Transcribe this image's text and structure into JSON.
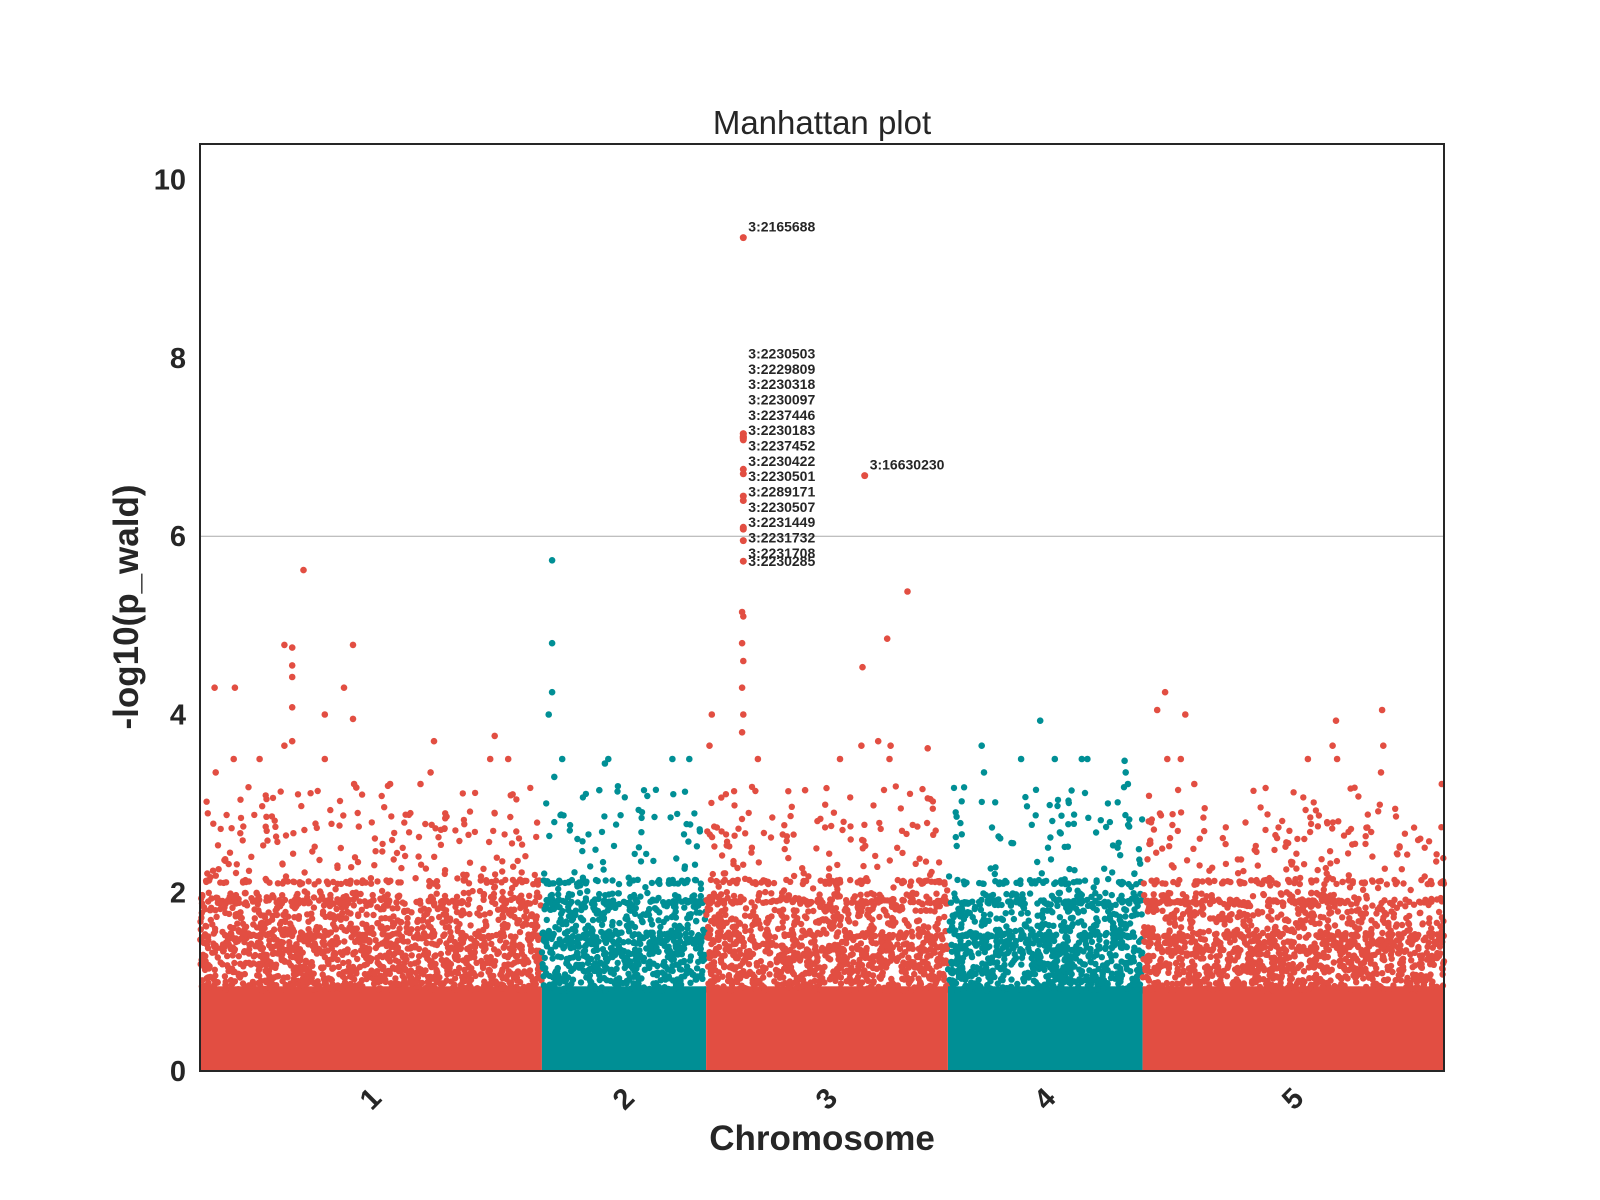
{
  "chart_data": {
    "type": "scatter",
    "title": "Manhattan plot",
    "xlabel": "Chromosome",
    "ylabel": "-log10(p_wald)",
    "ylim": [
      0,
      10.4
    ],
    "yticks": [
      "0",
      "2",
      "4",
      "6",
      "8",
      "10"
    ],
    "threshold": 6,
    "grid": false,
    "colors": {
      "odd": "#e24e42",
      "even": "#008f95",
      "threshold": "#aaaaaa",
      "frame": "#262626"
    },
    "chromosomes": [
      {
        "label": "1",
        "start": 0,
        "end": 30.4
      },
      {
        "label": "2",
        "start": 30.4,
        "end": 45.0
      },
      {
        "label": "3",
        "start": 45.0,
        "end": 66.5
      },
      {
        "label": "4",
        "start": 66.5,
        "end": 83.8
      },
      {
        "label": "5",
        "start": 83.8,
        "end": 110.6
      }
    ],
    "top_hits": [
      {
        "label": "3:2165688",
        "x": 48.3,
        "y": 9.35
      },
      {
        "label": "3:2230503",
        "x": 48.3,
        "y": 7.15
      },
      {
        "label": "3:2229809",
        "x": 48.3,
        "y": 7.15
      },
      {
        "label": "3:2230318",
        "x": 48.3,
        "y": 7.12
      },
      {
        "label": "3:2230097",
        "x": 48.3,
        "y": 7.12
      },
      {
        "label": "3:2237446",
        "x": 48.3,
        "y": 7.1
      },
      {
        "label": "3:2230183",
        "x": 48.3,
        "y": 7.1
      },
      {
        "label": "3:2237452",
        "x": 48.3,
        "y": 7.08
      },
      {
        "label": "3:2230422",
        "x": 48.3,
        "y": 6.75
      },
      {
        "label": "3:2230501",
        "x": 48.3,
        "y": 6.7
      },
      {
        "label": "3:16630230",
        "x": 59.1,
        "y": 6.68
      },
      {
        "label": "3:2289171",
        "x": 48.3,
        "y": 6.45
      },
      {
        "label": "3:2230507",
        "x": 48.3,
        "y": 6.4
      },
      {
        "label": "3:2231449",
        "x": 48.3,
        "y": 6.1
      },
      {
        "label": "3:2231732",
        "x": 48.3,
        "y": 6.08
      },
      {
        "label": "3:2231708",
        "x": 48.3,
        "y": 5.95
      },
      {
        "label": "3:2230285",
        "x": 48.3,
        "y": 5.72
      }
    ],
    "notable_points": [
      {
        "x": 9.2,
        "y": 5.62
      },
      {
        "x": 7.5,
        "y": 4.78
      },
      {
        "x": 8.2,
        "y": 4.75
      },
      {
        "x": 13.6,
        "y": 4.78
      },
      {
        "x": 8.2,
        "y": 4.55
      },
      {
        "x": 8.2,
        "y": 4.42
      },
      {
        "x": 1.3,
        "y": 4.3
      },
      {
        "x": 3.1,
        "y": 4.3
      },
      {
        "x": 12.8,
        "y": 4.3
      },
      {
        "x": 8.2,
        "y": 4.08
      },
      {
        "x": 11.1,
        "y": 4.0
      },
      {
        "x": 13.6,
        "y": 3.95
      },
      {
        "x": 8.2,
        "y": 3.7
      },
      {
        "x": 20.8,
        "y": 3.7
      },
      {
        "x": 26.2,
        "y": 3.76
      },
      {
        "x": 7.5,
        "y": 3.65
      },
      {
        "x": 3.0,
        "y": 3.5
      },
      {
        "x": 5.3,
        "y": 3.5
      },
      {
        "x": 11.1,
        "y": 3.5
      },
      {
        "x": 25.8,
        "y": 3.5
      },
      {
        "x": 27.4,
        "y": 3.5
      },
      {
        "x": 1.4,
        "y": 3.35
      },
      {
        "x": 20.5,
        "y": 3.35
      },
      {
        "x": 13.7,
        "y": 3.22
      },
      {
        "x": 16.9,
        "y": 3.22
      },
      {
        "x": 19.6,
        "y": 3.22
      },
      {
        "x": 13.9,
        "y": 3.18
      },
      {
        "x": 31.3,
        "y": 5.73
      },
      {
        "x": 31.3,
        "y": 4.8
      },
      {
        "x": 31.3,
        "y": 4.25
      },
      {
        "x": 31.0,
        "y": 4.0
      },
      {
        "x": 32.2,
        "y": 3.5
      },
      {
        "x": 36.3,
        "y": 3.5
      },
      {
        "x": 43.5,
        "y": 3.5
      },
      {
        "x": 42.0,
        "y": 3.5
      },
      {
        "x": 36.0,
        "y": 3.45
      },
      {
        "x": 31.5,
        "y": 3.3
      },
      {
        "x": 35.5,
        "y": 3.15
      },
      {
        "x": 48.2,
        "y": 5.15
      },
      {
        "x": 48.3,
        "y": 5.1
      },
      {
        "x": 48.2,
        "y": 4.8
      },
      {
        "x": 48.3,
        "y": 4.6
      },
      {
        "x": 48.2,
        "y": 4.3
      },
      {
        "x": 48.3,
        "y": 4.0
      },
      {
        "x": 48.2,
        "y": 3.8
      },
      {
        "x": 45.5,
        "y": 4.0
      },
      {
        "x": 45.3,
        "y": 3.65
      },
      {
        "x": 49.6,
        "y": 3.5
      },
      {
        "x": 62.9,
        "y": 5.38
      },
      {
        "x": 61.1,
        "y": 4.85
      },
      {
        "x": 58.9,
        "y": 4.53
      },
      {
        "x": 58.8,
        "y": 3.65
      },
      {
        "x": 60.3,
        "y": 3.7
      },
      {
        "x": 61.4,
        "y": 3.65
      },
      {
        "x": 64.7,
        "y": 3.62
      },
      {
        "x": 61.3,
        "y": 3.5
      },
      {
        "x": 53.8,
        "y": 3.15
      },
      {
        "x": 56.9,
        "y": 3.5
      },
      {
        "x": 74.7,
        "y": 3.93
      },
      {
        "x": 69.5,
        "y": 3.65
      },
      {
        "x": 73.0,
        "y": 3.5
      },
      {
        "x": 76.0,
        "y": 3.5
      },
      {
        "x": 78.4,
        "y": 3.5
      },
      {
        "x": 78.9,
        "y": 3.5
      },
      {
        "x": 82.2,
        "y": 3.48
      },
      {
        "x": 69.7,
        "y": 3.35
      },
      {
        "x": 82.3,
        "y": 3.35
      },
      {
        "x": 82.5,
        "y": 3.22
      },
      {
        "x": 85.8,
        "y": 4.25
      },
      {
        "x": 85.1,
        "y": 4.05
      },
      {
        "x": 87.6,
        "y": 4.0
      },
      {
        "x": 101.0,
        "y": 3.93
      },
      {
        "x": 105.1,
        "y": 4.05
      },
      {
        "x": 105.2,
        "y": 3.65
      },
      {
        "x": 100.7,
        "y": 3.65
      },
      {
        "x": 86.0,
        "y": 3.5
      },
      {
        "x": 87.2,
        "y": 3.5
      },
      {
        "x": 98.5,
        "y": 3.5
      },
      {
        "x": 101.1,
        "y": 3.5
      },
      {
        "x": 110.4,
        "y": 3.22
      },
      {
        "x": 88.4,
        "y": 3.22
      },
      {
        "x": 105.0,
        "y": 3.35
      }
    ]
  }
}
